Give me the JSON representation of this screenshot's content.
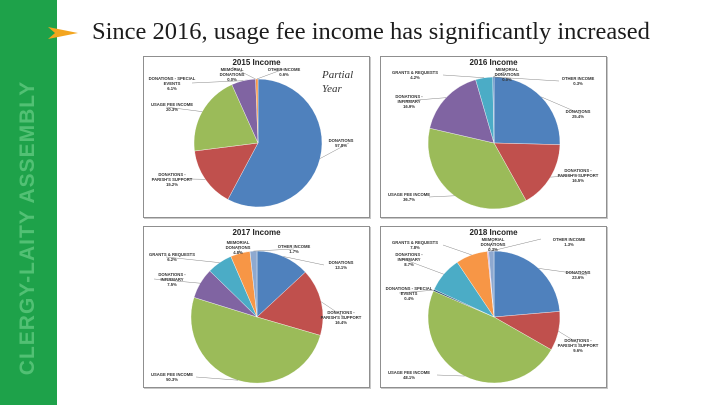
{
  "slide": {
    "title": "Since 2016, usage fee income has significantly increased",
    "sidebar_text": "CLERGY-LAITY ASSEMBLY",
    "partial_note": [
      "Partial",
      "Year"
    ],
    "colors": {
      "sidebar": "#1ea24a",
      "sidebar_text": "#52c074",
      "arrow": "#f3a51f"
    }
  },
  "chart_data": [
    {
      "type": "pie",
      "title": "2015 Income",
      "colors": [
        "#4f81bd",
        "#c0504d",
        "#9bbb59",
        "#8064a2",
        "#4bacc6",
        "#f79646"
      ],
      "slices": [
        {
          "label": [
            "DONATIONS",
            "57.8%"
          ],
          "value": 57.8
        },
        {
          "label": [
            "DONATIONS -",
            "PARISH'S SUPPORT",
            "15.2%"
          ],
          "value": 15.2
        },
        {
          "label": [
            "USAGE FEE INCOME",
            "20.3%"
          ],
          "value": 20.3
        },
        {
          "label": [
            "DONATIONS - SPECIAL",
            "EVENTS",
            "6.1%"
          ],
          "value": 6.1
        },
        {
          "label": [
            "MEMORIAL",
            "DONATIONS",
            "0.0%"
          ],
          "value": 0.0
        },
        {
          "label": [
            "OTHER INCOME",
            "0.6%"
          ],
          "value": 0.6
        }
      ]
    },
    {
      "type": "pie",
      "title": "2016 Income",
      "colors": [
        "#4f81bd",
        "#c0504d",
        "#9bbb59",
        "#8064a2",
        "#4bacc6",
        "#f79646",
        "#4f81bd"
      ],
      "slices": [
        {
          "label": [
            "DONATIONS",
            "25.4%"
          ],
          "value": 25.4
        },
        {
          "label": [
            "DONATIONS -",
            "PARISH'S SUPPORT",
            "16.5%"
          ],
          "value": 16.5
        },
        {
          "label": [
            "USAGE FEE INCOME",
            "36.7%"
          ],
          "value": 36.7
        },
        {
          "label": [
            "DONATIONS -",
            "INFIRMARY",
            "16.9%"
          ],
          "value": 16.9
        },
        {
          "label": [
            "GRANTS & REQUESTS",
            "4.2%"
          ],
          "value": 4.2
        },
        {
          "label": [
            "MEMORIAL",
            "DONATIONS",
            "0.0%"
          ],
          "value": 0.0
        },
        {
          "label": [
            "OTHER INCOME",
            "0.3%"
          ],
          "value": 0.3
        }
      ]
    },
    {
      "type": "pie",
      "title": "2017 Income",
      "colors": [
        "#4f81bd",
        "#c0504d",
        "#9bbb59",
        "#8064a2",
        "#4bacc6",
        "#f79646",
        "#8ea9d0"
      ],
      "slices": [
        {
          "label": [
            "DONATIONS",
            "13.1%"
          ],
          "value": 13.1
        },
        {
          "label": [
            "DONATIONS -",
            "PARISH'S SUPPORT",
            "16.4%"
          ],
          "value": 16.4
        },
        {
          "label": [
            "USAGE FEE INCOME",
            "50.3%"
          ],
          "value": 50.3
        },
        {
          "label": [
            "DONATIONS -",
            "INFIRMARY",
            "7.5%"
          ],
          "value": 7.5
        },
        {
          "label": [
            "GRANTS & REQUESTS",
            "6.2%"
          ],
          "value": 6.2
        },
        {
          "label": [
            "MEMORIAL",
            "DONATIONS",
            "4.8%"
          ],
          "value": 4.8
        },
        {
          "label": [
            "OTHER INCOME",
            "1.7%"
          ],
          "value": 1.7
        }
      ]
    },
    {
      "type": "pie",
      "title": "2018 Income",
      "colors": [
        "#4f81bd",
        "#c0504d",
        "#9bbb59",
        "#2c4d75",
        "#4bacc6",
        "#f79646",
        "#c39bd3",
        "#8ea9d0"
      ],
      "slices": [
        {
          "label": [
            "DONATIONS",
            "23.6%"
          ],
          "value": 23.6
        },
        {
          "label": [
            "DONATIONS -",
            "PARISH'S SUPPORT",
            "9.6%"
          ],
          "value": 9.6
        },
        {
          "label": [
            "USAGE FEE INCOME",
            "48.1%"
          ],
          "value": 48.1
        },
        {
          "label": [
            "DONATIONS - SPECIAL",
            "EVENTS",
            "0.4%"
          ],
          "value": 0.4
        },
        {
          "label": [
            "DONATIONS -",
            "INFIRMARY",
            "8.7%"
          ],
          "value": 8.7
        },
        {
          "label": [
            "GRANTS & REQUESTS",
            "7.8%"
          ],
          "value": 7.8
        },
        {
          "label": [
            "MEMORIAL",
            "DONATIONS",
            "0.3%"
          ],
          "value": 0.3
        },
        {
          "label": [
            "OTHER INCOME",
            "1.3%"
          ],
          "value": 1.3
        }
      ]
    }
  ]
}
